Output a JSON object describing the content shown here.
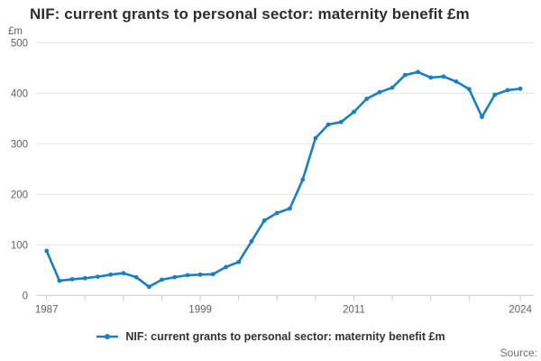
{
  "page": {
    "title": "NIF: current grants to personal sector: maternity benefit £m",
    "source_label": "Source:"
  },
  "legend": {
    "series_label": "NIF: current grants to personal sector: maternity benefit £m"
  },
  "chart_data": {
    "type": "line",
    "title": "NIF: current grants to personal sector: maternity benefit £m",
    "unit_label": "£m",
    "xlabel": "",
    "ylabel": "£m",
    "x": [
      1987,
      1988,
      1989,
      1990,
      1991,
      1992,
      1993,
      1994,
      1995,
      1996,
      1997,
      1998,
      1999,
      2000,
      2001,
      2002,
      2003,
      2004,
      2005,
      2006,
      2007,
      2008,
      2009,
      2010,
      2011,
      2012,
      2013,
      2014,
      2015,
      2016,
      2017,
      2018,
      2019,
      2020,
      2021,
      2022,
      2023,
      2024
    ],
    "values": [
      88,
      29,
      32,
      34,
      37,
      41,
      44,
      36,
      17,
      31,
      36,
      40,
      41,
      42,
      56,
      66,
      107,
      148,
      163,
      172,
      229,
      311,
      338,
      343,
      363,
      389,
      402,
      411,
      436,
      442,
      431,
      433,
      423,
      408,
      353,
      397,
      406,
      409
    ],
    "series": [
      {
        "name": "NIF: current grants to personal sector: maternity benefit £m",
        "values": [
          88,
          29,
          32,
          34,
          37,
          41,
          44,
          36,
          17,
          31,
          36,
          40,
          41,
          42,
          56,
          66,
          107,
          148,
          163,
          172,
          229,
          311,
          338,
          343,
          363,
          389,
          402,
          411,
          436,
          442,
          431,
          433,
          423,
          408,
          353,
          397,
          406,
          409
        ]
      }
    ],
    "xlim": [
      1987,
      2024
    ],
    "ylim": [
      0,
      500
    ],
    "ytick_interval": 100,
    "yticks": [
      0,
      100,
      200,
      300,
      400,
      500
    ],
    "xticks_labeled": [
      1987,
      1999,
      2011,
      2024
    ],
    "xticks_all": [
      1987,
      1990,
      1993,
      1996,
      1999,
      2002,
      2005,
      2008,
      2011,
      2014,
      2017,
      2020,
      2024
    ],
    "grid": true,
    "legend_position": "bottom",
    "colors": {
      "line": "#1780c4",
      "grid": "#e4e4e4",
      "axis": "#c3cbd6",
      "tick_text": "#5f5f5f"
    }
  }
}
